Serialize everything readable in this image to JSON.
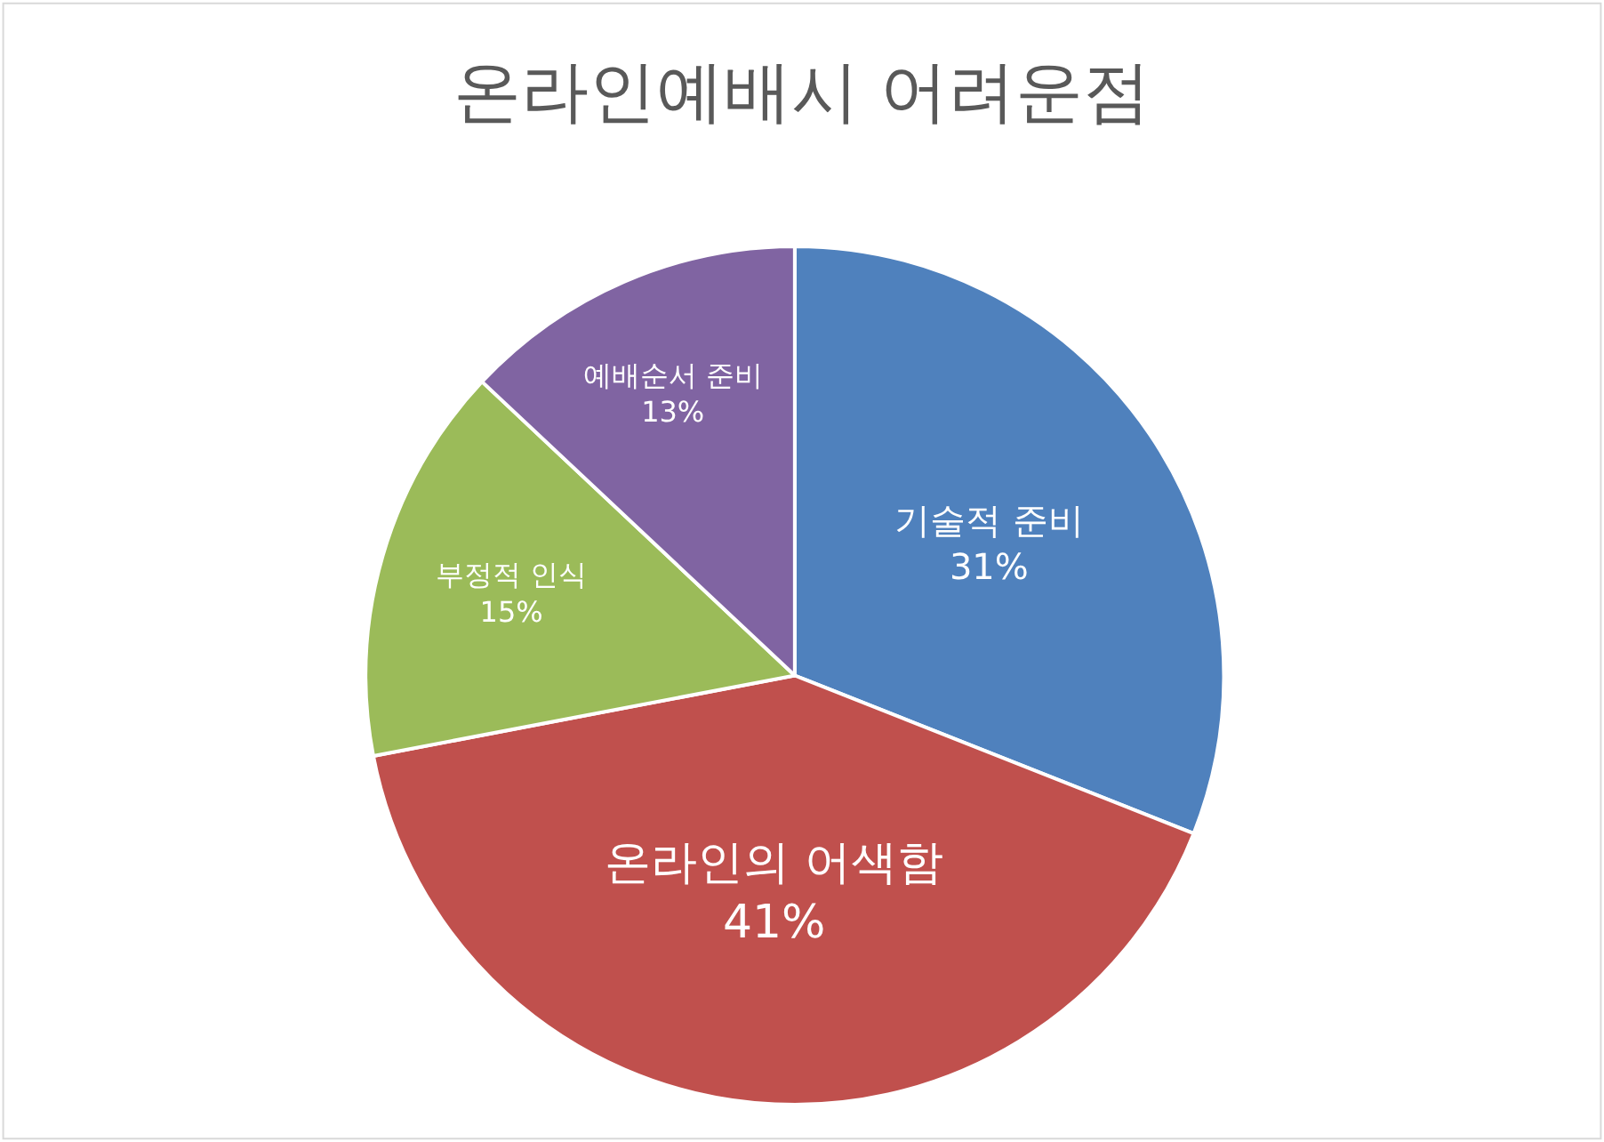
{
  "chart_data": {
    "type": "pie",
    "title": "온라인예배시 어려운점",
    "categories": [
      "기술적 준비",
      "온라인의 어색함",
      "부정적 인식",
      "예배순서 준비"
    ],
    "values": [
      31,
      41,
      15,
      13
    ],
    "value_labels": [
      "31%",
      "41%",
      "15%",
      "13%"
    ],
    "colors": [
      "#4f81bd",
      "#c0504d",
      "#9bbb59",
      "#8064a2"
    ],
    "legend": false
  }
}
